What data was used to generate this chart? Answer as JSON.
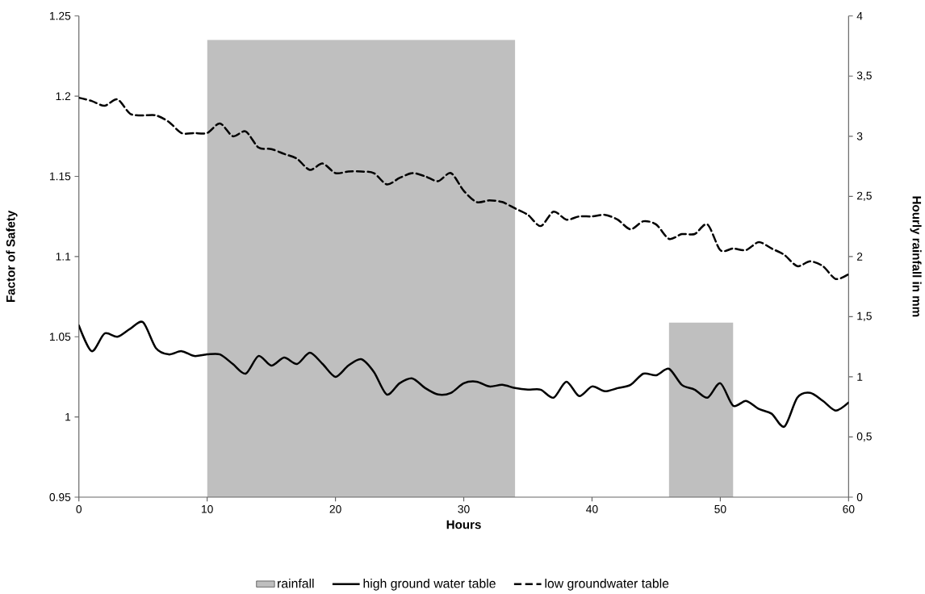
{
  "chart_data": {
    "type": "line",
    "xlabel": "Hours",
    "ylabel": "Factor of Safety",
    "y2label": "Hourly rainfall in mm",
    "x": [
      0,
      1,
      2,
      3,
      4,
      5,
      6,
      7,
      8,
      9,
      10,
      11,
      12,
      13,
      14,
      15,
      16,
      17,
      18,
      19,
      20,
      21,
      22,
      23,
      24,
      25,
      26,
      27,
      28,
      29,
      30,
      31,
      32,
      33,
      34,
      35,
      36,
      37,
      38,
      39,
      40,
      41,
      42,
      43,
      44,
      45,
      46,
      47,
      48,
      49,
      50,
      51,
      52,
      53,
      54,
      55,
      56,
      57,
      58,
      59,
      60
    ],
    "series": [
      {
        "name": "rainfall",
        "type": "area",
        "axis": "y2",
        "color": "#bfbfbf",
        "x": [
          10,
          10,
          34,
          34,
          46,
          46,
          51,
          51
        ],
        "values": [
          0,
          3.8,
          3.8,
          0,
          0,
          1.45,
          1.45,
          0
        ]
      },
      {
        "name": "high ground water table",
        "color": "#000000",
        "line_style": "solid",
        "values": [
          1.057,
          1.041,
          1.052,
          1.05,
          1.055,
          1.059,
          1.043,
          1.039,
          1.041,
          1.038,
          1.039,
          1.039,
          1.033,
          1.027,
          1.038,
          1.032,
          1.037,
          1.033,
          1.04,
          1.033,
          1.025,
          1.032,
          1.036,
          1.028,
          1.014,
          1.021,
          1.024,
          1.018,
          1.014,
          1.015,
          1.021,
          1.022,
          1.019,
          1.02,
          1.018,
          1.017,
          1.017,
          1.012,
          1.022,
          1.013,
          1.019,
          1.016,
          1.018,
          1.02,
          1.027,
          1.026,
          1.03,
          1.02,
          1.017,
          1.012,
          1.021,
          1.007,
          1.01,
          1.005,
          1.002,
          0.994,
          1.012,
          1.015,
          1.01,
          1.004,
          1.009
        ]
      },
      {
        "name": "low groundwater table",
        "color": "#000000",
        "line_style": "dashed",
        "values": [
          1.199,
          1.197,
          1.194,
          1.198,
          1.189,
          1.188,
          1.188,
          1.184,
          1.177,
          1.177,
          1.177,
          1.183,
          1.175,
          1.178,
          1.168,
          1.167,
          1.164,
          1.161,
          1.154,
          1.158,
          1.152,
          1.153,
          1.153,
          1.152,
          1.145,
          1.149,
          1.152,
          1.15,
          1.147,
          1.152,
          1.141,
          1.134,
          1.135,
          1.134,
          1.13,
          1.126,
          1.119,
          1.128,
          1.123,
          1.125,
          1.125,
          1.126,
          1.123,
          1.117,
          1.122,
          1.12,
          1.111,
          1.114,
          1.114,
          1.12,
          1.104,
          1.105,
          1.104,
          1.109,
          1.105,
          1.101,
          1.094,
          1.097,
          1.094,
          1.086,
          1.089
        ]
      }
    ],
    "xlim": [
      0,
      60
    ],
    "xticks": [
      0,
      10,
      20,
      30,
      40,
      50,
      60
    ],
    "ylim": [
      0.95,
      1.25
    ],
    "yticks": [
      0.95,
      1,
      1.05,
      1.1,
      1.15,
      1.2,
      1.25
    ],
    "y2lim": [
      0,
      4
    ],
    "y2ticks": [
      0,
      {
        "value": 0.5,
        "label": "0,5"
      },
      1,
      {
        "value": 1.5,
        "label": "1,5"
      },
      2,
      {
        "value": 2.5,
        "label": "2,5"
      },
      3,
      {
        "value": 3.5,
        "label": "3,5"
      },
      4
    ],
    "grid": false,
    "legend": "bottom",
    "marker": "none"
  }
}
